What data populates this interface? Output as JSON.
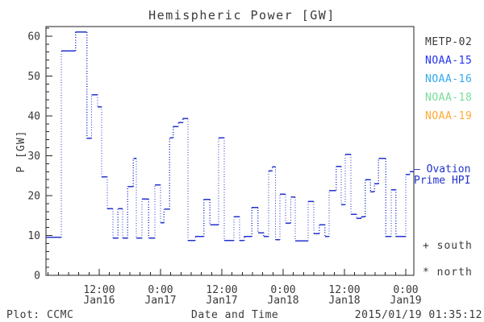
{
  "title": "Hemispheric Power [GW]",
  "chart_data": {
    "type": "line",
    "style": "staircase-dotted",
    "title": "Hemispheric Power [GW]",
    "xlabel": "Date and Time",
    "ylabel": "P [GW]",
    "ylim": [
      0,
      62.4
    ],
    "xlim_hours": [
      0,
      72
    ],
    "grid": "off",
    "time_window_start": "2015/01/16 01:35",
    "time_window_end": "2015/01/19 01:35",
    "line_color": "#2233cc",
    "axis_color": "#222222",
    "text_color": "#3a3a3a",
    "y_ticks": {
      "major": [
        0,
        10,
        20,
        30,
        40,
        50,
        60
      ],
      "minor_step": 2
    },
    "x_ticks": {
      "minor_step_hours": 2,
      "minor_start_hour": 0.42,
      "major": [
        {
          "t": 10.42,
          "time": "12:00",
          "date": "Jan16"
        },
        {
          "t": 22.42,
          "time": "0:00",
          "date": "Jan17"
        },
        {
          "t": 34.42,
          "time": "12:00",
          "date": "Jan17"
        },
        {
          "t": 46.42,
          "time": "0:00",
          "date": "Jan18"
        },
        {
          "t": 58.42,
          "time": "12:00",
          "date": "Jan18"
        },
        {
          "t": 70.42,
          "time": "0:00",
          "date": "Jan19"
        }
      ]
    },
    "series": [
      {
        "name": "Ovation Prime HPI",
        "color": "#2233cc",
        "segments_t0_t1_gw": [
          [
            0,
            3.0,
            9.5
          ],
          [
            3.0,
            5.8,
            56.3
          ],
          [
            5.8,
            8.0,
            61.0
          ],
          [
            8.0,
            8.9,
            34.4
          ],
          [
            8.9,
            10.1,
            45.3
          ],
          [
            10.1,
            10.9,
            42.3
          ],
          [
            10.9,
            12.0,
            24.7
          ],
          [
            12.0,
            13.1,
            16.7
          ],
          [
            13.1,
            14.1,
            9.3
          ],
          [
            14.1,
            15.0,
            16.7
          ],
          [
            15.0,
            16.0,
            9.3
          ],
          [
            16.0,
            17.1,
            22.3
          ],
          [
            17.1,
            17.7,
            29.3
          ],
          [
            17.7,
            18.8,
            9.3
          ],
          [
            18.8,
            20.1,
            19.1
          ],
          [
            20.1,
            21.3,
            9.3
          ],
          [
            21.3,
            22.4,
            22.7
          ],
          [
            22.4,
            23.1,
            13.2
          ],
          [
            23.1,
            24.2,
            16.6
          ],
          [
            24.2,
            24.9,
            34.5
          ],
          [
            24.9,
            25.9,
            37.3
          ],
          [
            25.9,
            26.8,
            38.3
          ],
          [
            26.8,
            27.8,
            39.3
          ],
          [
            27.8,
            29.2,
            8.7
          ],
          [
            29.2,
            30.9,
            9.7
          ],
          [
            30.9,
            32.1,
            19.0
          ],
          [
            32.1,
            33.8,
            12.7
          ],
          [
            33.8,
            34.9,
            34.5
          ],
          [
            34.9,
            36.8,
            8.7
          ],
          [
            36.8,
            37.9,
            14.7
          ],
          [
            37.9,
            38.8,
            8.7
          ],
          [
            38.8,
            40.3,
            9.7
          ],
          [
            40.3,
            41.5,
            17.0
          ],
          [
            41.5,
            42.6,
            10.7
          ],
          [
            42.6,
            43.6,
            9.7
          ],
          [
            43.6,
            44.3,
            26.2
          ],
          [
            44.3,
            44.9,
            27.2
          ],
          [
            44.9,
            45.8,
            8.9
          ],
          [
            45.8,
            46.9,
            20.3
          ],
          [
            46.9,
            47.9,
            13.1
          ],
          [
            47.9,
            48.8,
            19.6
          ],
          [
            48.8,
            51.3,
            8.6
          ],
          [
            51.3,
            52.4,
            18.5
          ],
          [
            52.4,
            53.5,
            10.5
          ],
          [
            53.5,
            54.6,
            12.7
          ],
          [
            54.6,
            55.4,
            9.7
          ],
          [
            55.4,
            56.8,
            21.3
          ],
          [
            56.8,
            57.8,
            27.3
          ],
          [
            57.8,
            58.6,
            17.7
          ],
          [
            58.6,
            59.7,
            30.3
          ],
          [
            59.7,
            60.8,
            15.3
          ],
          [
            60.8,
            61.7,
            14.3
          ],
          [
            61.7,
            62.5,
            14.7
          ],
          [
            62.5,
            63.5,
            24.0
          ],
          [
            63.5,
            64.3,
            21.0
          ],
          [
            64.3,
            65.1,
            23.0
          ],
          [
            65.1,
            66.5,
            29.3
          ],
          [
            66.5,
            67.6,
            9.7
          ],
          [
            67.6,
            68.5,
            21.5
          ],
          [
            68.5,
            70.4,
            9.7
          ],
          [
            70.4,
            71.2,
            25.3
          ],
          [
            71.2,
            72.0,
            26.0
          ]
        ]
      }
    ]
  },
  "legend": {
    "satellites": [
      {
        "label": "METP-02",
        "color": "#3a3a3a"
      },
      {
        "label": "NOAA-15",
        "color": "#2233ee"
      },
      {
        "label": "NOAA-16",
        "color": "#33aaee"
      },
      {
        "label": "NOAA-18",
        "color": "#77dd99"
      },
      {
        "label": "NOAA-19",
        "color": "#ffaa33"
      }
    ],
    "model_annotation": {
      "dash": "–",
      "line1": "Ovation",
      "line2": "Prime HPI",
      "color": "#2233cc"
    },
    "markers": [
      {
        "symbol": "+",
        "label": "south"
      },
      {
        "symbol": "*",
        "label": "north"
      }
    ]
  },
  "footer": {
    "credit": "Plot: CCMC",
    "axis_label": "Date and Time",
    "timestamp": "2015/01/19 01:35:12"
  }
}
